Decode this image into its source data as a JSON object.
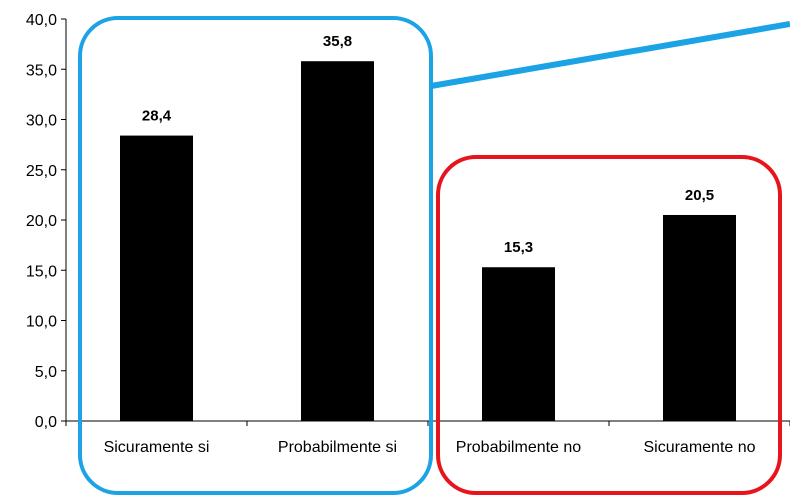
{
  "chart_data": {
    "type": "bar",
    "title": "",
    "xlabel": "",
    "ylabel": "",
    "categories": [
      "Sicuramente si",
      "Probabilmente si",
      "Probabilmente no",
      "Sicuramente no"
    ],
    "values": [
      28.4,
      35.8,
      15.3,
      20.5
    ],
    "data_labels": [
      "28,4",
      "35,8",
      "15,3",
      "20,5"
    ],
    "ylim": [
      0,
      40
    ],
    "y_ticks": [
      "0,0",
      "5,0",
      "10,0",
      "15,0",
      "20,0",
      "25,0",
      "30,0",
      "35,0",
      "40,0"
    ],
    "grid": false,
    "legend": "none",
    "bar_color": "#000000",
    "groups": [
      {
        "categories": [
          "Sicuramente si",
          "Probabilmente si"
        ],
        "outline_color": "#1ba3e6"
      },
      {
        "categories": [
          "Probabilmente no",
          "Sicuramente no"
        ],
        "outline_color": "#e8141c"
      }
    ]
  }
}
